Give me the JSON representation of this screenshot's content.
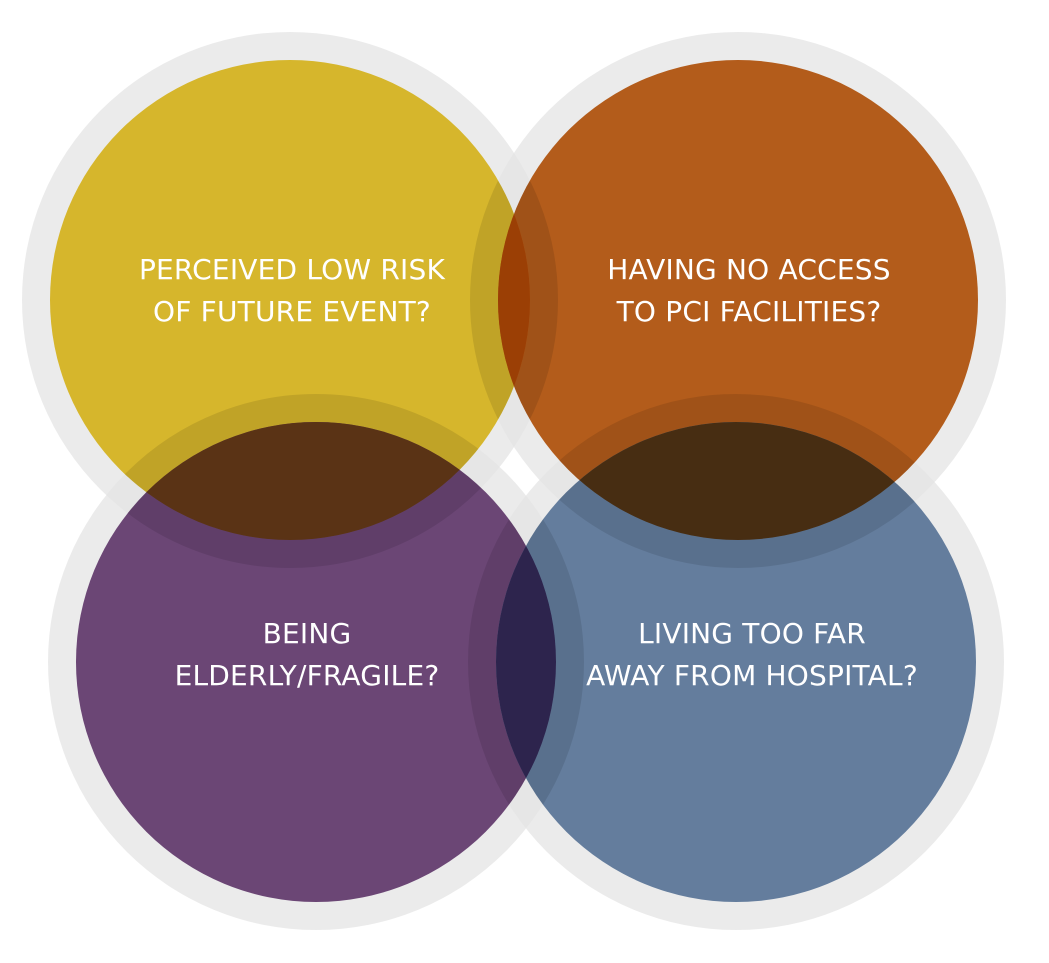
{
  "circles": [
    {
      "id": "top-left",
      "color": "#D6B62C",
      "lines": [
        "PERCEIVED LOW RISK",
        "OF FUTURE EVENT?"
      ]
    },
    {
      "id": "top-right",
      "color": "#B35C1B",
      "lines": [
        "HAVING NO ACCESS",
        "TO PCI FACILITIES?"
      ]
    },
    {
      "id": "bottom-left",
      "color": "#6B4675",
      "lines": [
        "BEING",
        "ELDERLY/FRAGILE?"
      ]
    },
    {
      "id": "bottom-right",
      "color": "#647D9D",
      "lines": [
        "LIVING TOO FAR",
        "AWAY FROM HOSPITAL?"
      ]
    }
  ],
  "overlaps": {
    "top": "#9B3F05",
    "left": "#5A3315",
    "right": "#472D12",
    "bottom": "#2D244D"
  },
  "ring_color": "#E4E4E4"
}
